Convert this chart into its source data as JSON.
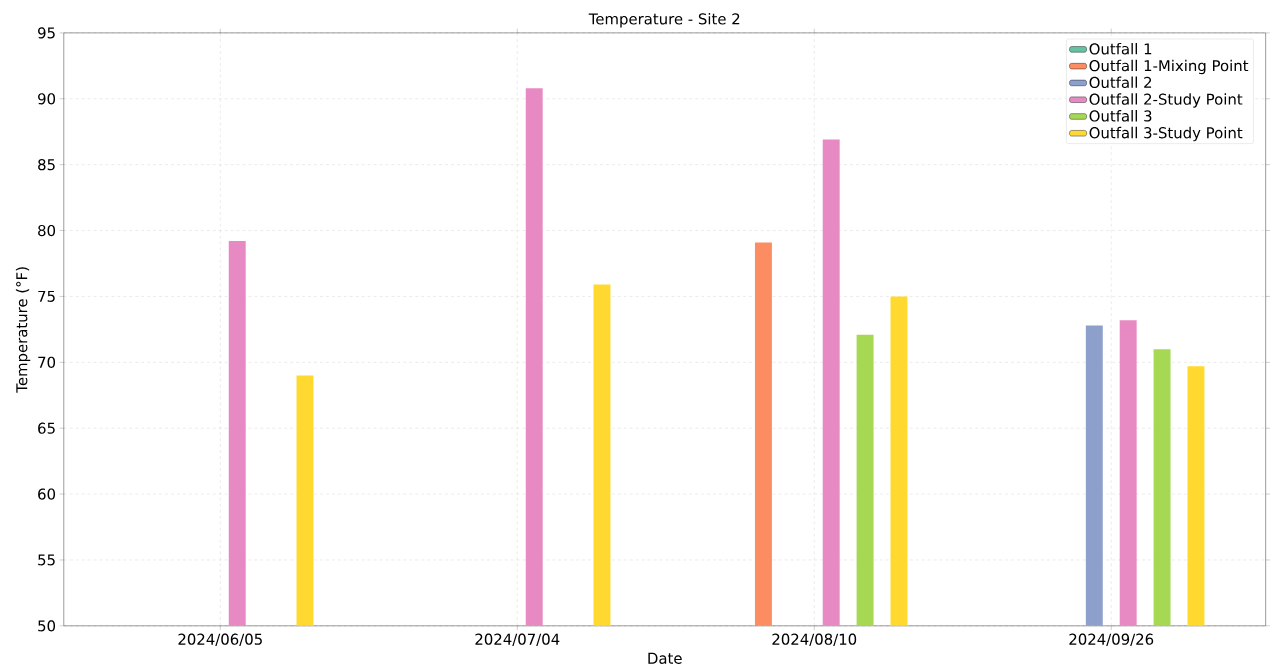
{
  "chart_data": {
    "type": "bar",
    "title": "Temperature - Site 2",
    "xlabel": "Date",
    "ylabel": "Temperature (°F)",
    "categories": [
      "2024/06/05",
      "2024/07/04",
      "2024/08/10",
      "2024/09/26"
    ],
    "series": [
      {
        "name": "Outfall 1",
        "color": "#66c2a5",
        "values": [
          null,
          null,
          null,
          null
        ]
      },
      {
        "name": "Outfall 1-Mixing Point",
        "color": "#fc8d62",
        "values": [
          null,
          null,
          79.1,
          null
        ]
      },
      {
        "name": "Outfall 2",
        "color": "#8da0cb",
        "values": [
          null,
          null,
          null,
          72.8
        ]
      },
      {
        "name": "Outfall 2-Study Point",
        "color": "#e78ac3",
        "values": [
          79.2,
          90.8,
          86.9,
          73.2
        ]
      },
      {
        "name": "Outfall 3",
        "color": "#a6d854",
        "values": [
          null,
          null,
          72.1,
          71.0
        ]
      },
      {
        "name": "Outfall 3-Study Point",
        "color": "#ffd92f",
        "values": [
          69.0,
          75.9,
          75.0,
          69.7
        ]
      }
    ],
    "ylim": [
      50,
      95
    ],
    "yticks": [
      50,
      55,
      60,
      65,
      70,
      75,
      80,
      85,
      90,
      95
    ],
    "grid": true,
    "legend": "top right"
  }
}
